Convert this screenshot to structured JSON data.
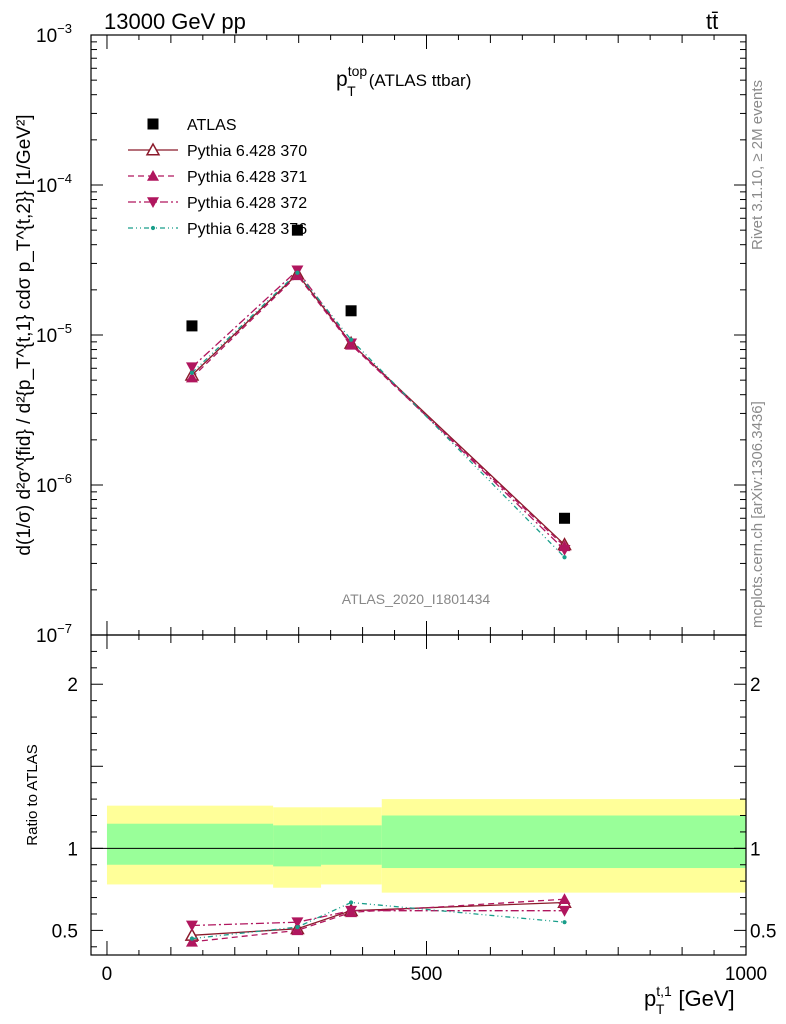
{
  "header": {
    "left": "13000 GeV pp",
    "right": "tt̄"
  },
  "side_labels": {
    "top": "Rivet 3.1.10, ≥ 2M events",
    "bottom": "mcplots.cern.ch [arXiv:1306.3436]"
  },
  "watermark": "ATLAS_2020_I1801434",
  "chart_data": [
    {
      "type": "scatter",
      "panel": "main",
      "title": "p_T^top (ATLAS ttbar)",
      "title_main": "p",
      "title_sup": "top",
      "title_sub": "T",
      "title_tail": "(ATLAS ttbar)",
      "ylabel": "d(1/σ) d²σ^{fid} / d²{p_T^{t,1} cdσ p_T^{t,2}} [1/GeV²]",
      "yscale": "log",
      "ylim": [
        1e-07,
        0.001
      ],
      "xlim": [
        -25,
        1000
      ],
      "y_ticks": [
        {
          "value": 1e-07,
          "base": "10",
          "exp": "−7"
        },
        {
          "value": 1e-06,
          "base": "10",
          "exp": "−6"
        },
        {
          "value": 1e-05,
          "base": "10",
          "exp": "−5"
        },
        {
          "value": 0.0001,
          "base": "10",
          "exp": "−4"
        },
        {
          "value": 0.001,
          "base": "10",
          "exp": "−3"
        }
      ],
      "legend_position": "top-left",
      "series": [
        {
          "name": "ATLAS",
          "color": "#000000",
          "marker": "square",
          "x": [
            133,
            298,
            382,
            716
          ],
          "y": [
            1.15e-05,
            5e-05,
            1.45e-05,
            6e-07
          ]
        },
        {
          "name": "Pythia 6.428 370",
          "color": "#8b1a2b",
          "marker": "open-triangle-up",
          "dash": "solid",
          "x": [
            133,
            298,
            382,
            716
          ],
          "y": [
            5.4e-06,
            2.55e-05,
            8.8e-06,
            4e-07
          ]
        },
        {
          "name": "Pythia 6.428 371",
          "color": "#b0165e",
          "marker": "triangle-up",
          "dash": "dashed",
          "x": [
            133,
            298,
            382,
            716
          ],
          "y": [
            5.2e-06,
            2.5e-05,
            8.6e-06,
            3.9e-07
          ]
        },
        {
          "name": "Pythia 6.428 372",
          "color": "#b0165e",
          "marker": "triangle-down",
          "dash": "dashdot",
          "x": [
            133,
            298,
            382,
            716
          ],
          "y": [
            6.1e-06,
            2.7e-05,
            8.8e-06,
            3.7e-07
          ]
        },
        {
          "name": "Pythia 6.428 376",
          "color": "#199e8a",
          "marker": "dot",
          "dash": "dashdotdot",
          "x": [
            133,
            298,
            382,
            716
          ],
          "y": [
            5.6e-06,
            2.6e-05,
            9.3e-06,
            3.3e-07
          ]
        }
      ]
    },
    {
      "type": "scatter",
      "panel": "ratio",
      "ylabel": "Ratio to ATLAS",
      "xlabel": "p_T^{t,1} [GeV]",
      "xlabel_main": "p",
      "xlabel_sup": "t,1",
      "xlabel_sub": "T",
      "xlabel_unit": "[GeV]",
      "ylim": [
        0.35,
        2.3
      ],
      "xlim": [
        -25,
        1000
      ],
      "x_ticks": [
        0,
        500,
        1000
      ],
      "x_tick_labels": [
        "0",
        "500",
        "1000"
      ],
      "y_ticks": [
        0.5,
        1,
        2
      ],
      "y_tick_labels": [
        "0.5",
        "1",
        "2"
      ],
      "bands": [
        {
          "x0": 0,
          "x1": 260,
          "yellow": [
            0.78,
            1.26
          ],
          "green": [
            0.9,
            1.15
          ]
        },
        {
          "x0": 260,
          "x1": 335,
          "yellow": [
            0.76,
            1.25
          ],
          "green": [
            0.89,
            1.14
          ]
        },
        {
          "x0": 335,
          "x1": 430,
          "yellow": [
            0.78,
            1.25
          ],
          "green": [
            0.9,
            1.14
          ]
        },
        {
          "x0": 430,
          "x1": 1000,
          "yellow": [
            0.73,
            1.3
          ],
          "green": [
            0.88,
            1.2
          ]
        }
      ],
      "series": [
        {
          "name": "Pythia 6.428 370",
          "color": "#8b1a2b",
          "marker": "open-triangle-up",
          "dash": "solid",
          "x": [
            133,
            298,
            382,
            716
          ],
          "y": [
            0.47,
            0.51,
            0.62,
            0.67
          ]
        },
        {
          "name": "Pythia 6.428 371",
          "color": "#b0165e",
          "marker": "triangle-up",
          "dash": "dashed",
          "x": [
            133,
            298,
            382,
            716
          ],
          "y": [
            0.43,
            0.5,
            0.61,
            0.69
          ]
        },
        {
          "name": "Pythia 6.428 372",
          "color": "#b0165e",
          "marker": "triangle-down",
          "dash": "dashdot",
          "x": [
            133,
            298,
            382,
            716
          ],
          "y": [
            0.53,
            0.55,
            0.62,
            0.62
          ]
        },
        {
          "name": "Pythia 6.428 376",
          "color": "#199e8a",
          "marker": "dot",
          "dash": "dashdotdot",
          "x": [
            133,
            298,
            382,
            716
          ],
          "y": [
            0.45,
            0.52,
            0.67,
            0.55
          ]
        }
      ]
    }
  ]
}
